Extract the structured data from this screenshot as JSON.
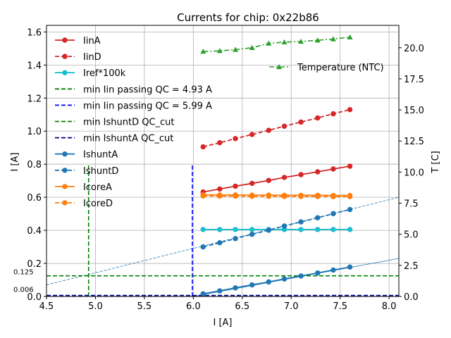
{
  "chart_data": {
    "type": "line",
    "title": "Currents for chip: 0x22b86",
    "xlabel": "I [A]",
    "ylabel": "I [A]",
    "y2label": "T [C]",
    "xlim": [
      4.5,
      8.1
    ],
    "ylim": [
      0.0,
      1.64
    ],
    "y2lim": [
      0.0,
      21.8
    ],
    "xticks": [
      "4.5",
      "5.0",
      "5.5",
      "6.0",
      "6.5",
      "7.0",
      "7.5",
      "8.0"
    ],
    "xtick_values": [
      4.5,
      5.0,
      5.5,
      6.0,
      6.5,
      7.0,
      7.5,
      8.0
    ],
    "yticks": [
      "0.0",
      "0.2",
      "0.4",
      "0.6",
      "0.8",
      "1.0",
      "1.2",
      "1.4",
      "1.6"
    ],
    "ytick_values": [
      0.0,
      0.2,
      0.4,
      0.6,
      0.8,
      1.0,
      1.2,
      1.4,
      1.6
    ],
    "y2ticks": [
      "0.0",
      "2.5",
      "5.0",
      "7.5",
      "10.0",
      "12.5",
      "15.0",
      "17.5",
      "20.0"
    ],
    "y2tick_values": [
      0.0,
      2.5,
      5.0,
      7.5,
      10.0,
      12.5,
      15.0,
      17.5,
      20.0
    ],
    "grid": true,
    "legend_position": "top-left",
    "legend2_position": "top-right",
    "x": [
      6.1,
      6.27,
      6.43,
      6.6,
      6.77,
      6.93,
      7.1,
      7.27,
      7.43,
      7.6
    ],
    "series": [
      {
        "name": "IinA",
        "color": "#d62728",
        "style": "solid",
        "marker": "circle",
        "values": [
          0.632,
          0.65,
          0.667,
          0.684,
          0.702,
          0.72,
          0.737,
          0.754,
          0.771,
          0.788
        ]
      },
      {
        "name": "IinD",
        "color": "#d62728",
        "style": "dashed",
        "marker": "circle",
        "values": [
          0.905,
          0.93,
          0.955,
          0.98,
          1.005,
          1.03,
          1.055,
          1.08,
          1.105,
          1.13
        ]
      },
      {
        "name": "Iref*100k",
        "color": "#17becf",
        "style": "solid",
        "marker": "circle",
        "values": [
          0.405,
          0.405,
          0.405,
          0.405,
          0.405,
          0.405,
          0.405,
          0.405,
          0.405,
          0.405
        ]
      },
      {
        "name": "min Iin passing QC = 4.93 A",
        "color": "#008000",
        "style": "dashed",
        "marker": "none"
      },
      {
        "name": "min Iin passing QC = 5.99 A",
        "color": "#0000ff",
        "style": "dashed",
        "marker": "none"
      },
      {
        "name": "min IshuntD QC_cut",
        "color": "#008000",
        "style": "dashed",
        "marker": "none"
      },
      {
        "name": "min IshuntA QC_cut",
        "color": "#00008b",
        "style": "dashed",
        "marker": "none"
      },
      {
        "name": "IshuntA",
        "color": "#1f77b4",
        "style": "solid",
        "marker": "circle",
        "values": [
          0.016,
          0.034,
          0.052,
          0.07,
          0.088,
          0.106,
          0.124,
          0.142,
          0.16,
          0.178
        ]
      },
      {
        "name": "IshuntD",
        "color": "#1f77b4",
        "style": "dashed",
        "marker": "circle",
        "values": [
          0.3,
          0.325,
          0.35,
          0.376,
          0.401,
          0.426,
          0.451,
          0.476,
          0.501,
          0.526
        ]
      },
      {
        "name": "IcoreA",
        "color": "#ff7f0e",
        "style": "solid",
        "marker": "circle",
        "values": [
          0.615,
          0.614,
          0.614,
          0.613,
          0.613,
          0.612,
          0.612,
          0.612,
          0.611,
          0.611
        ]
      },
      {
        "name": "IcoreD",
        "color": "#ff7f0e",
        "style": "dashed",
        "marker": "circle",
        "values": [
          0.608,
          0.607,
          0.607,
          0.606,
          0.606,
          0.605,
          0.605,
          0.605,
          0.604,
          0.604
        ]
      }
    ],
    "temperature": {
      "name": "Temperature (NTC)",
      "color": "#2ca02c",
      "style": "dashdot",
      "marker": "triangle",
      "values": [
        19.7,
        19.75,
        19.85,
        20.0,
        20.35,
        20.45,
        20.5,
        20.6,
        20.7,
        20.85
      ]
    },
    "vlines": [
      {
        "x": 4.93,
        "ymax": 0.8,
        "color": "#008000"
      },
      {
        "x": 5.99,
        "ymax": 0.8,
        "color": "#0000ff"
      }
    ],
    "hlines": [
      {
        "y": 0.125,
        "color": "#008000",
        "label": "0.125"
      },
      {
        "y": 0.006,
        "color": "#00008b",
        "label": "0.006"
      }
    ],
    "fit_lines": [
      {
        "color": "#1f77b4",
        "x0": 4.5,
        "y0": 0.07,
        "x1": 8.1,
        "y1": 0.6
      },
      {
        "color": "#1f77b4",
        "x0": 6.0,
        "y0": 0.0,
        "x1": 8.1,
        "y1": 0.23
      }
    ]
  }
}
